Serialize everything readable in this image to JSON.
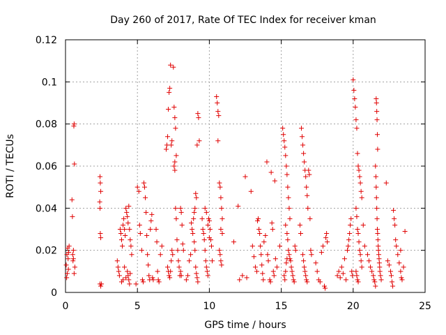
{
  "chart_data": {
    "type": "scatter",
    "title": "Day 260 of 2017, Rate Of TEC Index for receiver kman",
    "xlabel": "GPS time / hours",
    "ylabel": "ROTI / TECUs",
    "xlim": [
      0,
      25
    ],
    "ylim": [
      0,
      0.12
    ],
    "xticks": [
      "0",
      "5",
      "10",
      "15",
      "20",
      "25"
    ],
    "yticks": [
      "0",
      "0.02",
      "0.04",
      "0.06",
      "0.08",
      "0.1",
      "0.12"
    ],
    "grid": true,
    "marker": "plus",
    "color": "#e00000",
    "points": [
      [
        0.05,
        0.013
      ],
      [
        0.1,
        0.018
      ],
      [
        0.12,
        0.009
      ],
      [
        0.15,
        0.021
      ],
      [
        0.18,
        0.016
      ],
      [
        0.2,
        0.011
      ],
      [
        0.22,
        0.019
      ],
      [
        0.08,
        0.007
      ],
      [
        0.25,
        0.022
      ],
      [
        0.45,
        0.044
      ],
      [
        0.48,
        0.036
      ],
      [
        0.5,
        0.018
      ],
      [
        0.52,
        0.015
      ],
      [
        0.55,
        0.02
      ],
      [
        0.58,
        0.079
      ],
      [
        0.6,
        0.08
      ],
      [
        0.62,
        0.061
      ],
      [
        0.65,
        0.012
      ],
      [
        0.6,
        0.009
      ],
      [
        0.55,
        0.016
      ],
      [
        2.4,
        0.055
      ],
      [
        2.42,
        0.052
      ],
      [
        2.45,
        0.048
      ],
      [
        2.38,
        0.043
      ],
      [
        2.4,
        0.04
      ],
      [
        2.42,
        0.028
      ],
      [
        2.45,
        0.026
      ],
      [
        2.4,
        0.004
      ],
      [
        2.45,
        0.003
      ],
      [
        2.5,
        0.004
      ],
      [
        3.6,
        0.015
      ],
      [
        3.65,
        0.012
      ],
      [
        3.7,
        0.01
      ],
      [
        3.75,
        0.008
      ],
      [
        3.8,
        0.03
      ],
      [
        3.85,
        0.028
      ],
      [
        3.9,
        0.025
      ],
      [
        3.95,
        0.022
      ],
      [
        4.0,
        0.032
      ],
      [
        4.05,
        0.035
      ],
      [
        4.1,
        0.03
      ],
      [
        4.15,
        0.027
      ],
      [
        4.2,
        0.04
      ],
      [
        4.25,
        0.038
      ],
      [
        4.3,
        0.036
      ],
      [
        4.35,
        0.033
      ],
      [
        4.4,
        0.041
      ],
      [
        4.45,
        0.03
      ],
      [
        4.5,
        0.025
      ],
      [
        4.3,
        0.01
      ],
      [
        4.35,
        0.008
      ],
      [
        4.4,
        0.006
      ],
      [
        4.45,
        0.004
      ],
      [
        4.5,
        0.009
      ],
      [
        4.2,
        0.007
      ],
      [
        4.1,
        0.012
      ],
      [
        4.0,
        0.006
      ],
      [
        3.9,
        0.005
      ],
      [
        4.55,
        0.022
      ],
      [
        4.6,
        0.018
      ],
      [
        4.9,
        0.004
      ],
      [
        5.0,
        0.05
      ],
      [
        5.1,
        0.048
      ],
      [
        5.15,
        0.032
      ],
      [
        5.2,
        0.028
      ],
      [
        5.3,
        0.02
      ],
      [
        5.35,
        0.006
      ],
      [
        5.4,
        0.005
      ],
      [
        5.45,
        0.052
      ],
      [
        5.5,
        0.05
      ],
      [
        5.55,
        0.045
      ],
      [
        5.6,
        0.038
      ],
      [
        5.65,
        0.027
      ],
      [
        5.7,
        0.018
      ],
      [
        5.75,
        0.013
      ],
      [
        5.8,
        0.008
      ],
      [
        5.85,
        0.006
      ],
      [
        5.9,
        0.03
      ],
      [
        5.95,
        0.034
      ],
      [
        6.0,
        0.037
      ],
      [
        6.05,
        0.007
      ],
      [
        6.1,
        0.006
      ],
      [
        6.3,
        0.03
      ],
      [
        6.35,
        0.024
      ],
      [
        6.4,
        0.01
      ],
      [
        6.45,
        0.006
      ],
      [
        6.5,
        0.005
      ],
      [
        6.6,
        0.018
      ],
      [
        6.7,
        0.022
      ],
      [
        7.0,
        0.068
      ],
      [
        7.05,
        0.07
      ],
      [
        7.1,
        0.074
      ],
      [
        7.15,
        0.087
      ],
      [
        7.2,
        0.095
      ],
      [
        7.25,
        0.097
      ],
      [
        7.3,
        0.108
      ],
      [
        7.35,
        0.07
      ],
      [
        7.4,
        0.072
      ],
      [
        7.1,
        0.012
      ],
      [
        7.15,
        0.01
      ],
      [
        7.2,
        0.008
      ],
      [
        7.25,
        0.007
      ],
      [
        7.3,
        0.01
      ],
      [
        7.35,
        0.015
      ],
      [
        7.4,
        0.02
      ],
      [
        7.45,
        0.018
      ],
      [
        7.5,
        0.107
      ],
      [
        7.55,
        0.088
      ],
      [
        7.6,
        0.083
      ],
      [
        7.65,
        0.078
      ],
      [
        7.7,
        0.065
      ],
      [
        7.6,
        0.058
      ],
      [
        7.65,
        0.04
      ],
      [
        7.7,
        0.035
      ],
      [
        7.75,
        0.025
      ],
      [
        7.8,
        0.02
      ],
      [
        7.85,
        0.015
      ],
      [
        7.9,
        0.012
      ],
      [
        7.95,
        0.008
      ],
      [
        8.0,
        0.04
      ],
      [
        8.05,
        0.038
      ],
      [
        8.1,
        0.032
      ],
      [
        8.15,
        0.023
      ],
      [
        8.2,
        0.02
      ],
      [
        8.0,
        0.01
      ],
      [
        8.05,
        0.008
      ],
      [
        7.55,
        0.06
      ],
      [
        7.6,
        0.062
      ],
      [
        8.4,
        0.006
      ],
      [
        8.5,
        0.008
      ],
      [
        8.6,
        0.015
      ],
      [
        8.7,
        0.018
      ],
      [
        8.75,
        0.033
      ],
      [
        8.8,
        0.03
      ],
      [
        8.85,
        0.028
      ],
      [
        8.9,
        0.035
      ],
      [
        8.95,
        0.038
      ],
      [
        9.0,
        0.04
      ],
      [
        9.05,
        0.047
      ],
      [
        9.1,
        0.045
      ],
      [
        9.15,
        0.07
      ],
      [
        9.2,
        0.085
      ],
      [
        9.25,
        0.083
      ],
      [
        9.3,
        0.072
      ],
      [
        9.05,
        0.012
      ],
      [
        9.1,
        0.009
      ],
      [
        9.15,
        0.007
      ],
      [
        9.2,
        0.005
      ],
      [
        8.95,
        0.024
      ],
      [
        9.0,
        0.02
      ],
      [
        9.5,
        0.035
      ],
      [
        9.55,
        0.03
      ],
      [
        9.6,
        0.028
      ],
      [
        9.65,
        0.025
      ],
      [
        9.7,
        0.02
      ],
      [
        9.75,
        0.015
      ],
      [
        9.8,
        0.012
      ],
      [
        9.85,
        0.01
      ],
      [
        9.9,
        0.008
      ],
      [
        9.95,
        0.035
      ],
      [
        10.0,
        0.034
      ],
      [
        10.05,
        0.03
      ],
      [
        10.1,
        0.025
      ],
      [
        10.15,
        0.022
      ],
      [
        10.2,
        0.015
      ],
      [
        9.7,
        0.04
      ],
      [
        9.8,
        0.038
      ],
      [
        9.9,
        0.032
      ],
      [
        10.0,
        0.026
      ],
      [
        10.5,
        0.093
      ],
      [
        10.55,
        0.09
      ],
      [
        10.6,
        0.086
      ],
      [
        10.65,
        0.084
      ],
      [
        10.6,
        0.072
      ],
      [
        10.7,
        0.052
      ],
      [
        10.75,
        0.05
      ],
      [
        10.8,
        0.045
      ],
      [
        10.85,
        0.04
      ],
      [
        10.9,
        0.035
      ],
      [
        10.8,
        0.03
      ],
      [
        10.7,
        0.02
      ],
      [
        10.75,
        0.018
      ],
      [
        10.8,
        0.015
      ],
      [
        10.85,
        0.013
      ],
      [
        10.9,
        0.028
      ],
      [
        11.7,
        0.024
      ],
      [
        12.0,
        0.041
      ],
      [
        12.1,
        0.006
      ],
      [
        12.3,
        0.008
      ],
      [
        12.5,
        0.055
      ],
      [
        12.6,
        0.007
      ],
      [
        12.9,
        0.048
      ],
      [
        13.0,
        0.022
      ],
      [
        13.1,
        0.017
      ],
      [
        13.2,
        0.012
      ],
      [
        13.3,
        0.01
      ],
      [
        13.35,
        0.034
      ],
      [
        13.4,
        0.035
      ],
      [
        13.45,
        0.03
      ],
      [
        13.5,
        0.028
      ],
      [
        13.55,
        0.022
      ],
      [
        13.6,
        0.018
      ],
      [
        13.65,
        0.013
      ],
      [
        13.7,
        0.009
      ],
      [
        13.75,
        0.006
      ],
      [
        13.8,
        0.024
      ],
      [
        13.9,
        0.027
      ],
      [
        14.0,
        0.062
      ],
      [
        14.05,
        0.018
      ],
      [
        14.1,
        0.015
      ],
      [
        14.2,
        0.006
      ],
      [
        14.25,
        0.005
      ],
      [
        14.3,
        0.057
      ],
      [
        14.35,
        0.033
      ],
      [
        14.4,
        0.03
      ],
      [
        14.45,
        0.01
      ],
      [
        14.5,
        0.008
      ],
      [
        14.55,
        0.053
      ],
      [
        14.6,
        0.016
      ],
      [
        14.7,
        0.012
      ],
      [
        14.9,
        0.022
      ],
      [
        15.1,
        0.078
      ],
      [
        15.15,
        0.075
      ],
      [
        15.2,
        0.072
      ],
      [
        15.25,
        0.069
      ],
      [
        15.3,
        0.065
      ],
      [
        15.35,
        0.06
      ],
      [
        15.4,
        0.056
      ],
      [
        15.45,
        0.05
      ],
      [
        15.5,
        0.045
      ],
      [
        15.55,
        0.04
      ],
      [
        15.6,
        0.035
      ],
      [
        15.3,
        0.032
      ],
      [
        15.4,
        0.028
      ],
      [
        15.45,
        0.025
      ],
      [
        15.5,
        0.02
      ],
      [
        15.55,
        0.018
      ],
      [
        15.6,
        0.016
      ],
      [
        15.65,
        0.015
      ],
      [
        15.7,
        0.012
      ],
      [
        15.75,
        0.01
      ],
      [
        15.8,
        0.008
      ],
      [
        15.85,
        0.006
      ],
      [
        15.9,
        0.005
      ],
      [
        15.2,
        0.008
      ],
      [
        15.25,
        0.006
      ],
      [
        15.3,
        0.01
      ],
      [
        15.35,
        0.014
      ],
      [
        15.4,
        0.016
      ],
      [
        15.95,
        0.022
      ],
      [
        16.0,
        0.02
      ],
      [
        16.3,
        0.032
      ],
      [
        16.35,
        0.028
      ],
      [
        16.4,
        0.078
      ],
      [
        16.45,
        0.074
      ],
      [
        16.5,
        0.07
      ],
      [
        16.55,
        0.066
      ],
      [
        16.6,
        0.062
      ],
      [
        16.65,
        0.058
      ],
      [
        16.7,
        0.055
      ],
      [
        16.75,
        0.05
      ],
      [
        16.8,
        0.046
      ],
      [
        16.85,
        0.04
      ],
      [
        16.9,
        0.058
      ],
      [
        16.95,
        0.056
      ],
      [
        17.0,
        0.035
      ],
      [
        16.5,
        0.018
      ],
      [
        16.55,
        0.015
      ],
      [
        16.6,
        0.012
      ],
      [
        16.65,
        0.01
      ],
      [
        16.7,
        0.008
      ],
      [
        16.75,
        0.006
      ],
      [
        16.8,
        0.005
      ],
      [
        17.05,
        0.02
      ],
      [
        17.1,
        0.018
      ],
      [
        17.4,
        0.014
      ],
      [
        17.5,
        0.01
      ],
      [
        17.6,
        0.006
      ],
      [
        17.7,
        0.005
      ],
      [
        17.8,
        0.019
      ],
      [
        17.9,
        0.022
      ],
      [
        18.0,
        0.003
      ],
      [
        18.05,
        0.002
      ],
      [
        18.1,
        0.026
      ],
      [
        18.15,
        0.028
      ],
      [
        18.2,
        0.024
      ],
      [
        18.9,
        0.008
      ],
      [
        19.0,
        0.01
      ],
      [
        19.1,
        0.007
      ],
      [
        19.2,
        0.012
      ],
      [
        19.3,
        0.009
      ],
      [
        19.4,
        0.016
      ],
      [
        19.5,
        0.006
      ],
      [
        19.6,
        0.02
      ],
      [
        19.65,
        0.022
      ],
      [
        19.7,
        0.025
      ],
      [
        19.75,
        0.028
      ],
      [
        19.8,
        0.032
      ],
      [
        19.85,
        0.035
      ],
      [
        19.9,
        0.01
      ],
      [
        19.95,
        0.008
      ],
      [
        20.0,
        0.101
      ],
      [
        20.05,
        0.096
      ],
      [
        20.1,
        0.092
      ],
      [
        20.15,
        0.088
      ],
      [
        20.2,
        0.082
      ],
      [
        20.25,
        0.078
      ],
      [
        20.3,
        0.066
      ],
      [
        20.35,
        0.06
      ],
      [
        20.4,
        0.058
      ],
      [
        20.45,
        0.055
      ],
      [
        20.5,
        0.052
      ],
      [
        20.55,
        0.048
      ],
      [
        20.6,
        0.045
      ],
      [
        20.2,
        0.04
      ],
      [
        20.25,
        0.036
      ],
      [
        20.3,
        0.03
      ],
      [
        20.35,
        0.028
      ],
      [
        20.4,
        0.024
      ],
      [
        20.45,
        0.02
      ],
      [
        20.5,
        0.018
      ],
      [
        20.55,
        0.015
      ],
      [
        20.6,
        0.012
      ],
      [
        20.2,
        0.01
      ],
      [
        20.25,
        0.008
      ],
      [
        20.3,
        0.006
      ],
      [
        20.35,
        0.005
      ],
      [
        20.7,
        0.032
      ],
      [
        20.8,
        0.022
      ],
      [
        21.0,
        0.018
      ],
      [
        21.1,
        0.015
      ],
      [
        21.2,
        0.012
      ],
      [
        21.3,
        0.01
      ],
      [
        21.4,
        0.008
      ],
      [
        21.45,
        0.006
      ],
      [
        21.5,
        0.005
      ],
      [
        21.55,
        0.003
      ],
      [
        21.6,
        0.092
      ],
      [
        21.62,
        0.09
      ],
      [
        21.64,
        0.086
      ],
      [
        21.66,
        0.082
      ],
      [
        21.68,
        0.075
      ],
      [
        21.7,
        0.068
      ],
      [
        21.55,
        0.06
      ],
      [
        21.58,
        0.055
      ],
      [
        21.6,
        0.05
      ],
      [
        21.62,
        0.045
      ],
      [
        21.64,
        0.04
      ],
      [
        21.66,
        0.035
      ],
      [
        21.68,
        0.03
      ],
      [
        21.7,
        0.028
      ],
      [
        21.72,
        0.025
      ],
      [
        21.74,
        0.022
      ],
      [
        21.76,
        0.02
      ],
      [
        21.78,
        0.018
      ],
      [
        21.8,
        0.016
      ],
      [
        21.82,
        0.014
      ],
      [
        21.84,
        0.012
      ],
      [
        21.86,
        0.01
      ],
      [
        21.9,
        0.008
      ],
      [
        21.95,
        0.006
      ],
      [
        22.3,
        0.052
      ],
      [
        22.4,
        0.015
      ],
      [
        22.5,
        0.013
      ],
      [
        22.6,
        0.01
      ],
      [
        22.65,
        0.008
      ],
      [
        22.7,
        0.005
      ],
      [
        22.75,
        0.003
      ],
      [
        22.8,
        0.039
      ],
      [
        22.85,
        0.035
      ],
      [
        22.9,
        0.032
      ],
      [
        22.95,
        0.025
      ],
      [
        23.0,
        0.022
      ],
      [
        23.1,
        0.018
      ],
      [
        23.2,
        0.014
      ],
      [
        23.3,
        0.01
      ],
      [
        23.35,
        0.007
      ],
      [
        23.4,
        0.006
      ],
      [
        23.5,
        0.012
      ],
      [
        23.6,
        0.029
      ],
      [
        23.3,
        0.02
      ]
    ]
  }
}
